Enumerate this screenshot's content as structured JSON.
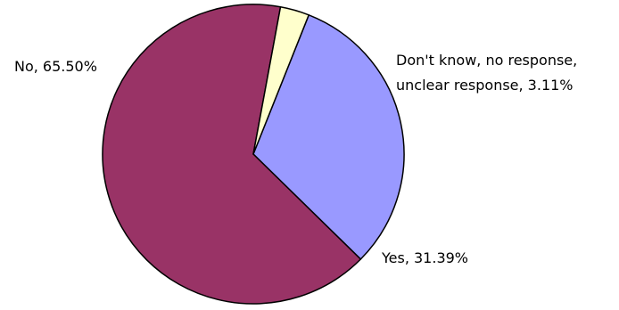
{
  "chart_data": {
    "type": "pie",
    "title": "",
    "legend": "none",
    "slices": [
      {
        "label": "Yes",
        "value": 31.39,
        "display": "Yes, 31.39%",
        "color": "#9999ff"
      },
      {
        "label": "No",
        "value": 65.5,
        "display": "No, 65.50%",
        "color": "#993366"
      },
      {
        "label": "Don't know, no response, unclear response",
        "value": 3.11,
        "display_lines": [
          "Don't know, no response,",
          "unclear response, 3.11%"
        ],
        "color": "#ffffcc"
      }
    ]
  }
}
